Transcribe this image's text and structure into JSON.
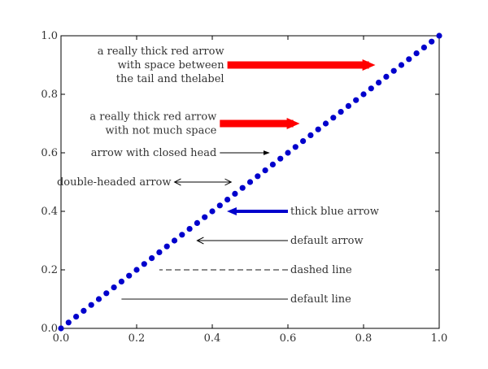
{
  "chart_data": {
    "type": "scatter",
    "title": "",
    "xlabel": "",
    "ylabel": "",
    "xlim": [
      0.0,
      1.0
    ],
    "ylim": [
      0.0,
      1.0
    ],
    "grid": false,
    "x_ticks": [
      "0.0",
      "0.2",
      "0.4",
      "0.6",
      "0.8",
      "1.0"
    ],
    "y_ticks": [
      "0.0",
      "0.2",
      "0.4",
      "0.6",
      "0.8",
      "1.0"
    ],
    "series": [
      {
        "color": "#0000cc",
        "marker": "circle",
        "x": [
          0.0,
          0.02,
          0.04,
          0.06,
          0.08,
          0.1,
          0.12,
          0.14,
          0.16,
          0.18,
          0.2,
          0.22,
          0.24,
          0.26,
          0.28,
          0.3,
          0.32,
          0.34,
          0.36,
          0.38,
          0.4,
          0.42,
          0.44,
          0.46,
          0.48,
          0.5,
          0.52,
          0.54,
          0.56,
          0.58,
          0.6,
          0.62,
          0.64,
          0.66,
          0.68,
          0.7,
          0.72,
          0.74,
          0.76,
          0.78,
          0.8,
          0.82,
          0.84,
          0.86,
          0.88,
          0.9,
          0.92,
          0.94,
          0.96,
          0.98,
          1.0
        ],
        "y": [
          0.0,
          0.02,
          0.04,
          0.06,
          0.08,
          0.1,
          0.12,
          0.14,
          0.16,
          0.18,
          0.2,
          0.22,
          0.24,
          0.26,
          0.28,
          0.3,
          0.32,
          0.34,
          0.36,
          0.38,
          0.4,
          0.42,
          0.44,
          0.46,
          0.48,
          0.5,
          0.52,
          0.54,
          0.56,
          0.58,
          0.6,
          0.62,
          0.64,
          0.66,
          0.68,
          0.7,
          0.72,
          0.74,
          0.76,
          0.78,
          0.8,
          0.82,
          0.84,
          0.86,
          0.88,
          0.9,
          0.92,
          0.94,
          0.96,
          0.98,
          1.0
        ]
      }
    ],
    "annotations": [
      {
        "lines": [
          "a really thick red arrow",
          "with space between",
          "the tail and thelabel"
        ],
        "style": "thick-arrow-gap",
        "color": "#ff0000",
        "from": [
          0.44,
          0.9
        ],
        "to": [
          0.84,
          0.9
        ]
      },
      {
        "lines": [
          "a really thick red arrow",
          "with not much space"
        ],
        "style": "thick-arrow",
        "color": "#ff0000",
        "from": [
          0.42,
          0.7
        ],
        "to": [
          0.64,
          0.7
        ]
      },
      {
        "lines": [
          "arrow with closed head"
        ],
        "style": "closed-arrow",
        "color": "#000000",
        "from": [
          0.42,
          0.6
        ],
        "to": [
          0.55,
          0.6
        ]
      },
      {
        "lines": [
          "double-headed arrow"
        ],
        "style": "double-arrow",
        "color": "#000000",
        "from": [
          0.3,
          0.5
        ],
        "to": [
          0.45,
          0.5
        ]
      },
      {
        "lines": [
          "thick blue arrow"
        ],
        "style": "thick-blue-arrow",
        "color": "#0000cc",
        "from": [
          0.6,
          0.4
        ],
        "to": [
          0.46,
          0.4
        ]
      },
      {
        "lines": [
          "default arrow"
        ],
        "style": "default-arrow",
        "color": "#000000",
        "from": [
          0.6,
          0.3
        ],
        "to": [
          0.36,
          0.3
        ]
      },
      {
        "lines": [
          "dashed line"
        ],
        "style": "dashed-line",
        "color": "#444444",
        "from": [
          0.6,
          0.2
        ],
        "to": [
          0.26,
          0.2
        ]
      },
      {
        "lines": [
          "default line"
        ],
        "style": "default-line",
        "color": "#444444",
        "from": [
          0.6,
          0.1
        ],
        "to": [
          0.16,
          0.1
        ]
      }
    ]
  }
}
